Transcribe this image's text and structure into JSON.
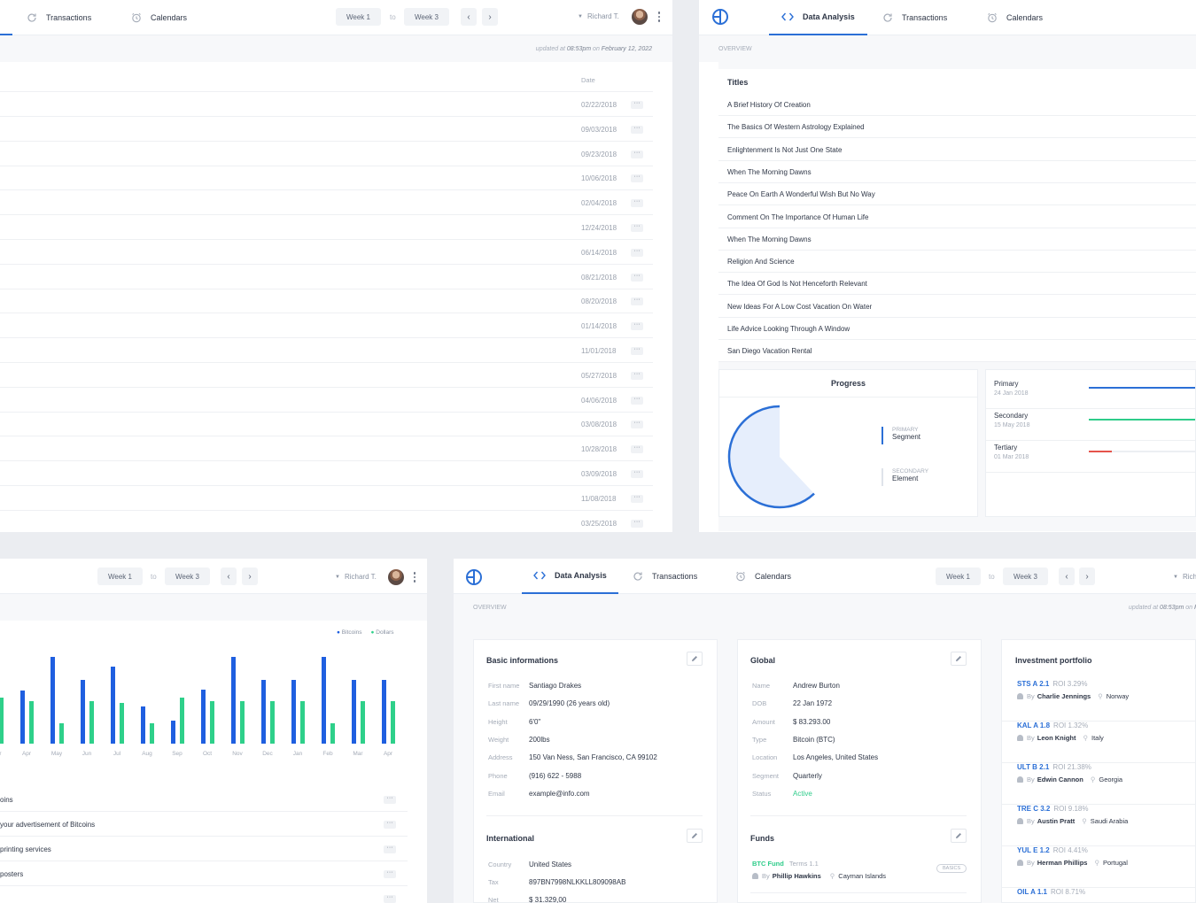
{
  "nav": {
    "data_analysis": "Data Analysis",
    "transactions": "Transactions",
    "calendars": "Calendars"
  },
  "range": {
    "from": "Week 1",
    "to_label": "to",
    "to": "Week 3"
  },
  "user": {
    "name": "Richard T."
  },
  "overview_label": "OVERVIEW",
  "updated": {
    "prefix": "updated at",
    "time": "08:53pm",
    "on": "on",
    "date": "February 12, 2022"
  },
  "table_left": {
    "header_date": "Date",
    "dates": [
      "02/22/2018",
      "09/03/2018",
      "09/23/2018",
      "10/06/2018",
      "02/04/2018",
      "12/24/2018",
      "06/14/2018",
      "08/21/2018",
      "08/20/2018",
      "01/14/2018",
      "11/01/2018",
      "05/27/2018",
      "04/06/2018",
      "03/08/2018",
      "10/28/2018",
      "03/09/2018",
      "11/08/2018",
      "03/25/2018"
    ]
  },
  "titles": {
    "header": "Titles",
    "items": [
      "A Brief History Of Creation",
      "The Basics Of Western Astrology Explained",
      "Enlightenment Is Not Just One State",
      "When The Morning Dawns",
      "Peace On Earth A Wonderful Wish But No Way",
      "Comment On The Importance Of Human Life",
      "When The Morning Dawns",
      "Religion And Science",
      "The Idea Of God Is Not Henceforth Relevant",
      "New Ideas For A Low Cost Vacation On Water",
      "Life Advice Looking Through A Window",
      "San Diego Vacation Rental"
    ]
  },
  "progress": {
    "title": "Progress",
    "pie_fraction": 0.62,
    "legend": [
      {
        "tag": "PRIMARY",
        "label": "Segment",
        "color": "#2b6fd6"
      },
      {
        "tag": "SECONDARY",
        "label": "Element",
        "color": "#dfe3ea"
      }
    ],
    "rows": [
      {
        "label": "Primary",
        "date": "24 Jan 2018",
        "color": "#2b6fd6",
        "fill": 1.0
      },
      {
        "label": "Secondary",
        "date": "15 May 2018",
        "color": "#2ecc8a",
        "fill": 1.0
      },
      {
        "label": "Tertiary",
        "date": "01 Mar 2018",
        "color": "#e5534b",
        "fill": 0.22
      }
    ]
  },
  "chart_data": {
    "type": "bar",
    "categories": [
      "Mar",
      "Apr",
      "May",
      "Jun",
      "Jul",
      "Aug",
      "Sep",
      "Oct",
      "Nov",
      "Dec",
      "Jan",
      "Feb",
      "Mar",
      "Apr"
    ],
    "series": [
      {
        "name": "Bitcoins",
        "color": "#1f5fe0",
        "values": [
          0,
          60,
          98,
          72,
          87,
          42,
          26,
          61,
          98,
          72,
          72,
          98,
          72,
          72
        ]
      },
      {
        "name": "Dollars",
        "color": "#2ed08a",
        "values": [
          52,
          48,
          23,
          48,
          46,
          23,
          52,
          48,
          48,
          48,
          48,
          23,
          48,
          48
        ]
      }
    ]
  },
  "messages": [
    "oins",
    "your advertisement of Bitcoins",
    "printing services",
    "posters",
    ""
  ],
  "basic": {
    "title": "Basic informations",
    "fields": [
      {
        "label": "First name",
        "value": "Santiago Drakes"
      },
      {
        "label": "Last name",
        "value": "09/29/1990 (26 years old)"
      },
      {
        "label": "Height",
        "value": "6'0\""
      },
      {
        "label": "Weight",
        "value": "200lbs"
      },
      {
        "label": "Address",
        "value": "150 Van Ness, San Francisco, CA 99102"
      },
      {
        "label": "Phone",
        "value": "(916) 622 - 5988"
      },
      {
        "label": "Email",
        "value": "example@info.com"
      }
    ]
  },
  "international": {
    "title": "International",
    "fields": [
      {
        "label": "Country",
        "value": "United States"
      },
      {
        "label": "Tax",
        "value": "897BN7998NLKKLL809098AB"
      },
      {
        "label": "Net",
        "value": "$ 31.329,00"
      }
    ]
  },
  "global": {
    "title": "Global",
    "fields": [
      {
        "label": "Name",
        "value": "Andrew Burton"
      },
      {
        "label": "DOB",
        "value": "22 Jan 1972"
      },
      {
        "label": "Amount",
        "value": "$ 83.293.00"
      },
      {
        "label": "Type",
        "value": "Bitcoin (BTC)"
      },
      {
        "label": "Location",
        "value": "Los Angeles, United States"
      },
      {
        "label": "Segment",
        "value": "Quarterly"
      },
      {
        "label": "Status",
        "value": "Active"
      }
    ],
    "status_color": "#2ecc8a"
  },
  "funds": {
    "title": "Funds",
    "item": {
      "name": "BTC Fund",
      "terms": "Terms 1.1",
      "by": "By",
      "person": "Phillip Hawkins",
      "location": "Cayman Islands",
      "badge": "BASICS"
    }
  },
  "investment": {
    "title": "Investment portfolio",
    "items": [
      {
        "code": "STS A 2.1",
        "roi": "ROI 3.29%",
        "by": "By",
        "person": "Charlie Jennings",
        "country": "Norway"
      },
      {
        "code": "KAL A 1.8",
        "roi": "ROI 1.32%",
        "by": "By",
        "person": "Leon Knight",
        "country": "Italy"
      },
      {
        "code": "ULT B 2.1",
        "roi": "ROI 21.38%",
        "by": "By",
        "person": "Edwin Cannon",
        "country": "Georgia"
      },
      {
        "code": "TRE C 3.2",
        "roi": "ROI 9.18%",
        "by": "By",
        "person": "Austin Pratt",
        "country": "Saudi Arabia"
      },
      {
        "code": "YUL E 1.2",
        "roi": "ROI 4.41%",
        "by": "By",
        "person": "Herman Phillips",
        "country": "Portugal"
      },
      {
        "code": "OIL A 1.1",
        "roi": "ROI 8.71%",
        "by": "",
        "person": "",
        "country": ""
      }
    ]
  }
}
